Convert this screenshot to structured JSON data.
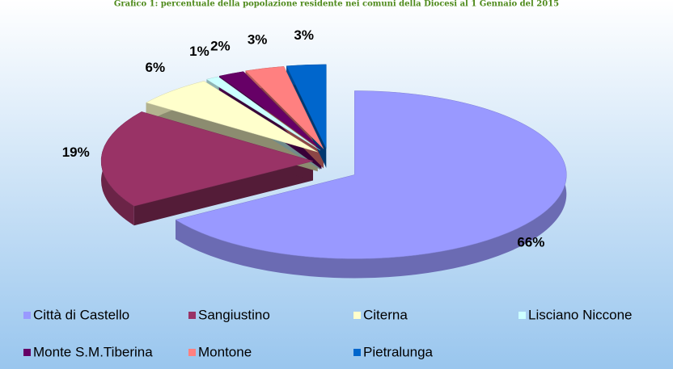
{
  "chart_data": {
    "type": "pie3d",
    "title": "Grafico 1: percentuale della popolazione residente nei comuni della Diocesi al 1 Gennaio del 2015",
    "categories": [
      "Città di Castello",
      "Sangiustino",
      "Citerna",
      "Lisciano Niccone",
      "Monte S.M.Tiberina",
      "Montone",
      "Pietralunga"
    ],
    "values": [
      66,
      19,
      6,
      1,
      2,
      3,
      3
    ],
    "value_labels": [
      "66%",
      "19%",
      "6%",
      "1%",
      "2%",
      "3%",
      "3%"
    ],
    "colors": [
      "#9999ff",
      "#993366",
      "#ffffcc",
      "#ccffff",
      "#660066",
      "#ff8080",
      "#0066cc"
    ],
    "legend": "bottom"
  }
}
